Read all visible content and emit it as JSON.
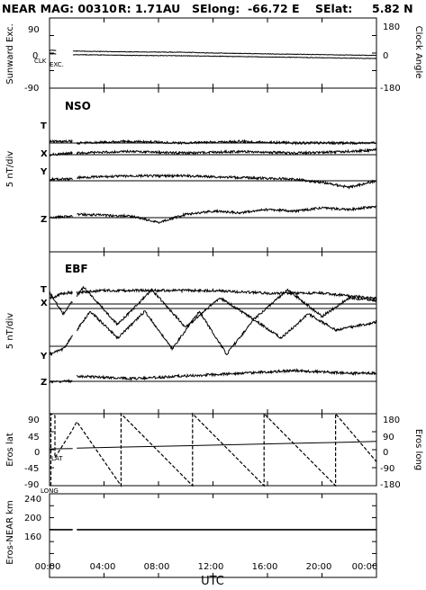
{
  "header": {
    "title": "NEAR MAG: 00310",
    "range": "R: 1.71AU",
    "selong": "SElong:  -66.72 E",
    "selat": "SElat:     5.82 N"
  },
  "chart_data": [
    {
      "type": "line",
      "panel": "sunward",
      "ylabel_left": "Sunward Exc.",
      "ylabel_right": "Clock Angle",
      "left_ticks": [
        "90",
        "0",
        "-90"
      ],
      "right_ticks": [
        "180",
        "0",
        "-180"
      ],
      "left_ylim": [
        -90,
        90
      ],
      "right_ylim": [
        -180,
        180
      ],
      "annotations": [
        "CLK",
        "EXC."
      ],
      "series": [
        {
          "name": "CLK",
          "x_hours": [
            0,
            0.5,
            1.7,
            2,
            6,
            10,
            12,
            16,
            20,
            24
          ],
          "values": [
            7,
            7,
            5,
            5,
            3,
            2,
            0,
            -2,
            -4,
            -6
          ]
        },
        {
          "name": "EXC.",
          "x_hours": [
            0,
            0.5,
            1.7,
            2,
            6,
            10,
            12,
            16,
            20,
            24
          ],
          "values": [
            -2,
            -2,
            -4,
            -4,
            -6,
            -7,
            -8,
            -10,
            -12,
            -14
          ]
        }
      ]
    },
    {
      "type": "line",
      "panel": "NSO",
      "title": "NSO",
      "ylabel": "5 nT/div",
      "series": [
        {
          "name": "T",
          "x_hours": [
            0,
            1.7,
            2,
            6,
            10,
            14,
            18,
            22,
            24
          ],
          "values": [
            0.1,
            0.1,
            0.0,
            0.1,
            0.0,
            0.1,
            0.0,
            0.0,
            0.0
          ]
        },
        {
          "name": "X",
          "x_hours": [
            0,
            1.7,
            2,
            6,
            10,
            14,
            18,
            22,
            24
          ],
          "values": [
            0.0,
            0.1,
            0.1,
            0.2,
            0.1,
            0.2,
            0.1,
            0.2,
            0.3
          ]
        },
        {
          "name": "Y",
          "x_hours": [
            0,
            1.7,
            2,
            6,
            10,
            14,
            18,
            20,
            22,
            23,
            24
          ],
          "values": [
            0.1,
            0.1,
            0.2,
            0.3,
            0.3,
            0.2,
            0.1,
            -0.1,
            -0.4,
            -0.2,
            0.0
          ]
        },
        {
          "name": "Z",
          "x_hours": [
            0,
            1.7,
            2,
            6,
            8,
            10,
            12,
            14,
            16,
            18,
            20,
            22,
            24
          ],
          "values": [
            0.0,
            0.1,
            0.2,
            0.1,
            -0.3,
            0.2,
            0.4,
            0.3,
            0.5,
            0.4,
            0.6,
            0.5,
            0.7
          ]
        }
      ]
    },
    {
      "type": "line",
      "panel": "EBF",
      "title": "EBF",
      "ylabel": "5 nT/div",
      "series": [
        {
          "name": "T",
          "x_hours": [
            0,
            1,
            4,
            8,
            12,
            16,
            20,
            24
          ],
          "values": [
            0.2,
            0.4,
            0.5,
            0.5,
            0.5,
            0.4,
            0.4,
            0.2
          ]
        },
        {
          "name": "X",
          "x_hours": [
            0,
            1,
            2.5,
            5,
            7.5,
            10,
            12.5,
            15,
            17.5,
            20,
            22,
            24
          ],
          "values": [
            0.6,
            -0.2,
            0.8,
            -0.6,
            0.7,
            -0.7,
            0.4,
            -0.4,
            0.7,
            -0.3,
            0.4,
            0.3
          ]
        },
        {
          "name": "Y",
          "x_hours": [
            0,
            1,
            3,
            5,
            7,
            9,
            11,
            13,
            15,
            17,
            19,
            21,
            24
          ],
          "values": [
            -0.3,
            -0.1,
            1.3,
            0.3,
            1.3,
            -0.1,
            1.3,
            -0.3,
            1.0,
            0.3,
            1.2,
            0.6,
            0.9
          ]
        },
        {
          "name": "Z",
          "x_hours": [
            0,
            1.7,
            2,
            6,
            10,
            14,
            18,
            22,
            24
          ],
          "values": [
            0.0,
            0.0,
            0.2,
            0.1,
            0.2,
            0.3,
            0.4,
            0.3,
            0.3
          ]
        }
      ]
    },
    {
      "type": "line",
      "panel": "eros",
      "ylabel_left": "Eros lat",
      "ylabel_right": "Eros long",
      "left_ticks": [
        "90",
        "45",
        "0",
        "-45",
        "-90"
      ],
      "right_ticks": [
        "180",
        "90",
        "0",
        "-90",
        "-180"
      ],
      "left_ylim": [
        -90,
        90
      ],
      "right_ylim": [
        -180,
        180
      ],
      "annotations": [
        "LAT",
        "LONG"
      ],
      "series": [
        {
          "name": "LAT",
          "x_hours": [
            0,
            1.7,
            2,
            6,
            10,
            14,
            18,
            22,
            24
          ],
          "values": [
            2,
            3,
            4,
            7,
            10,
            13,
            16,
            19,
            21
          ]
        },
        {
          "name": "LONG",
          "x_hours": [
            0.1,
            0.1,
            0.4,
            0.4,
            1.6,
            2,
            5.25,
            5.25,
            10.5,
            10.5,
            15.75,
            15.75,
            21,
            21,
            24
          ],
          "values": [
            -180,
            180,
            170,
            -40,
            90,
            140,
            -180,
            180,
            -180,
            180,
            -180,
            180,
            -180,
            180,
            -60
          ]
        }
      ]
    },
    {
      "type": "line",
      "panel": "distance",
      "ylabel": "Eros-NEAR km",
      "y_ticks": [
        "240",
        "200",
        "160"
      ],
      "ylim": [
        120,
        260
      ],
      "series": [
        {
          "name": "Eros-NEAR km",
          "x_hours": [
            0,
            1.7,
            2,
            24
          ],
          "values": [
            200,
            200,
            200,
            200
          ]
        }
      ]
    }
  ],
  "x_axis": {
    "label": "UTC",
    "ticks": [
      "00:00",
      "04:00",
      "08:00",
      "12:00",
      "16:00",
      "20:00",
      "00:00"
    ]
  },
  "colors": {
    "line": "#000000",
    "background": "#ffffff"
  }
}
